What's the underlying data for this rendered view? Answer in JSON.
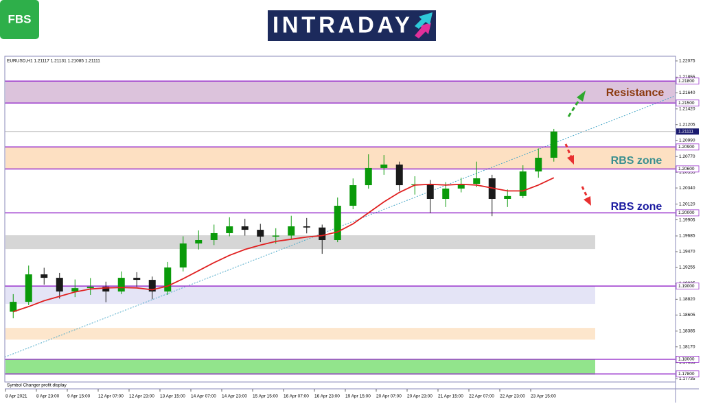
{
  "header": {
    "brand": "FBS",
    "banner": "INTRADAY"
  },
  "chart_data": {
    "type": "candlestick",
    "info": "EURUSD,H1  1.21117 1.21131 1.21085 1.21111",
    "footer_note": "Symbol Changer profit display",
    "categories": [
      "8 Apr 2021",
      null,
      "8 Apr 23:00",
      null,
      "9 Apr 15:00",
      null,
      "12 Apr 07:00",
      null,
      "12 Apr 23:00",
      null,
      "13 Apr 15:00",
      null,
      "14 Apr 07:00",
      null,
      "14 Apr 23:00",
      null,
      "15 Apr 15:00",
      null,
      "16 Apr 07:00",
      null,
      "16 Apr 23:00",
      null,
      "19 Apr 15:00",
      null,
      "20 Apr 07:00",
      null,
      "20 Apr 23:00",
      null,
      "21 Apr 15:00",
      null,
      "22 Apr 07:00",
      null,
      "22 Apr 23:00",
      null,
      "23 Apr 15:00",
      null
    ],
    "open": [
      1.1865,
      1.18785,
      1.1916,
      1.19113,
      1.18926,
      1.18972,
      1.18991,
      1.18926,
      1.19113,
      1.19085,
      1.18926,
      1.19254,
      1.19582,
      1.19629,
      1.19723,
      1.19816,
      1.19769,
      1.19676,
      1.1969,
      1.19816,
      1.198,
      1.19629,
      1.20097,
      1.20378,
      1.20613,
      1.2066,
      1.20378,
      1.2039,
      1.20191,
      1.20332,
      1.20397,
      1.20472,
      1.20191,
      1.2023,
      1.20566,
      1.20753
    ],
    "high": [
      1.1889,
      1.1928,
      1.1925,
      1.1918,
      1.1909,
      1.1911,
      1.1906,
      1.192,
      1.1919,
      1.1913,
      1.1933,
      1.1968,
      1.1976,
      1.1984,
      1.1994,
      1.1992,
      1.1985,
      1.1979,
      1.1996,
      1.1993,
      1.1984,
      1.2021,
      1.2047,
      1.208,
      1.2079,
      1.207,
      1.205,
      1.2045,
      1.2042,
      1.2048,
      1.207,
      1.2052,
      1.2032,
      1.2065,
      1.2088,
      1.21147
    ],
    "low": [
      1.1856,
      1.1874,
      1.1902,
      1.1883,
      1.1885,
      1.1888,
      1.1878,
      1.1889,
      1.1899,
      1.1882,
      1.1888,
      1.192,
      1.195,
      1.1956,
      1.1968,
      1.1969,
      1.196,
      1.1958,
      1.1964,
      1.1972,
      1.19441,
      1.196,
      1.2005,
      1.2033,
      1.2052,
      1.203,
      1.2025,
      1.2,
      1.2008,
      1.2028,
      1.2035,
      1.19955,
      1.2008,
      1.202,
      1.2048,
      1.207
    ],
    "close": [
      1.18785,
      1.1916,
      1.19113,
      1.18926,
      1.18972,
      1.18991,
      1.18926,
      1.19113,
      1.19085,
      1.18926,
      1.19254,
      1.19582,
      1.19629,
      1.19723,
      1.19816,
      1.19769,
      1.19676,
      1.1969,
      1.19816,
      1.198,
      1.19629,
      1.20097,
      1.20378,
      1.20613,
      1.2066,
      1.20378,
      1.2039,
      1.20191,
      1.20332,
      1.20397,
      1.20472,
      1.20191,
      1.2023,
      1.20566,
      1.20753,
      1.21111
    ],
    "up_color": "#0a9a0a",
    "down_color": "#1a1a1a",
    "moving_average": {
      "color": "#e02020",
      "values": [
        1.1865,
        1.1872,
        1.188,
        1.1886,
        1.1892,
        1.1896,
        1.18975,
        1.1898,
        1.18975,
        1.1895,
        1.19,
        1.191,
        1.1921,
        1.1932,
        1.1942,
        1.195,
        1.1956,
        1.1961,
        1.1964,
        1.1967,
        1.1969,
        1.1974,
        1.1985,
        1.2,
        1.2015,
        1.2028,
        1.2038,
        1.2039,
        1.2038,
        1.2039,
        1.2038,
        1.2034,
        1.203,
        1.203,
        1.2038,
        1.2048
      ]
    },
    "trendline": {
      "start": 1.1803,
      "end": 1.216,
      "color": "#4aa8c8"
    },
    "zones": [
      {
        "from": 1.218,
        "to": 1.215,
        "color": "#dcc3dc",
        "full_width": true
      },
      {
        "from": 1.209,
        "to": 1.206,
        "color": "#fde0c2",
        "full_width": true
      },
      {
        "from": 1.19694,
        "to": 1.19506,
        "color": "#d6d6d6",
        "full_width": false
      },
      {
        "from": 1.19,
        "to": 1.18757,
        "color": "#e4e4f6",
        "full_width": false
      },
      {
        "from": 1.18429,
        "to": 1.18269,
        "color": "#fde6cc",
        "full_width": false
      },
      {
        "from": 1.18,
        "to": 1.1779,
        "color": "#92e48c",
        "full_width": false
      }
    ],
    "levels": [
      {
        "value": 1.218,
        "label": "1.21800"
      },
      {
        "value": 1.215,
        "label": "1.21500"
      },
      {
        "value": 1.209,
        "label": "1.20900"
      },
      {
        "value": 1.206,
        "label": "1.20600"
      },
      {
        "value": 1.2,
        "label": "1.20000"
      },
      {
        "value": 1.19,
        "label": "1.19000"
      },
      {
        "value": 1.18,
        "label": "1.18000"
      },
      {
        "value": 1.178,
        "label": "1.17800"
      }
    ],
    "level_color": "#9933cc",
    "current_price": {
      "value": 1.21111,
      "label": "1.21111"
    },
    "annotations": [
      {
        "text": "Resistance",
        "color": "#8b3a0e"
      },
      {
        "text": "RBS zone",
        "color": "#3a8f8f"
      },
      {
        "text": "RBS zone",
        "color": "#1a1aa0"
      }
    ],
    "ylim": [
      1.1769,
      1.2213
    ],
    "yticks": [
      1.22075,
      1.21855,
      {
        "value": 1.2164,
        "label": "1.21640"
      },
      {
        "value": 1.2142,
        "label": "1.21420"
      },
      1.21205,
      {
        "value": 1.2099,
        "label": "1.20990"
      },
      {
        "value": 1.2077,
        "label": "1.20770"
      },
      1.20555,
      {
        "value": 1.2034,
        "label": "1.20340"
      },
      {
        "value": 1.2012,
        "label": "1.20120"
      },
      1.19905,
      1.19685,
      {
        "value": 1.1947,
        "label": "1.19470"
      },
      1.19255,
      1.19035,
      {
        "value": 1.1882,
        "label": "1.18820"
      },
      1.18605,
      1.18385,
      {
        "value": 1.1817,
        "label": "1.18170"
      },
      1.17955,
      1.17735
    ]
  }
}
